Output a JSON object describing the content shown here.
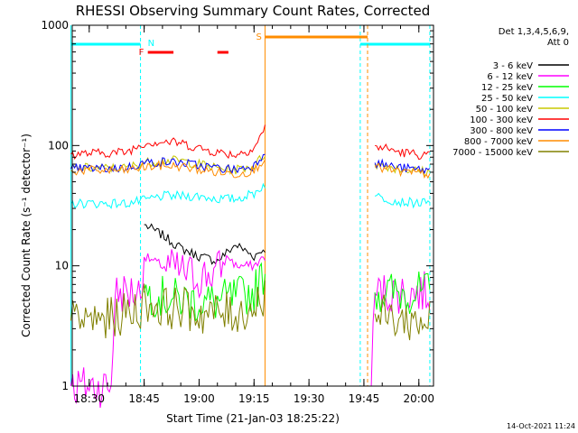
{
  "chart_data": {
    "type": "line",
    "title": "RHESSI Observing Summary Count Rates, Corrected",
    "xlabel": "Start Time (21-Jan-03 18:25:22)",
    "ylabel": "Corrected Count Rate (s⁻¹ detector⁻¹)",
    "y_scale": "log",
    "ylim": [
      1,
      1000
    ],
    "xlim": [
      "18:25:22",
      "20:04:00"
    ],
    "y_ticks": [
      {
        "value": 1,
        "label": "1"
      },
      {
        "value": 10,
        "label": "10"
      },
      {
        "value": 100,
        "label": "100"
      },
      {
        "value": 1000,
        "label": "1000"
      }
    ],
    "x_ticks": [
      "18:30",
      "18:45",
      "19:00",
      "19:15",
      "19:30",
      "19:45",
      "20:00"
    ],
    "legend_header": [
      "Det 1,3,4,5,6,9,",
      "Att 0"
    ],
    "legend_position": "right",
    "series": [
      {
        "name": "3 - 6 keV",
        "color": "#000000",
        "points": [
          [
            "18:45",
            22
          ],
          [
            "18:50",
            18
          ],
          [
            "18:55",
            14
          ],
          [
            "19:00",
            12
          ],
          [
            "19:05",
            11
          ],
          [
            "19:10",
            15
          ],
          [
            "19:15",
            12
          ],
          [
            "19:18",
            14
          ]
        ]
      },
      {
        "name": "6 - 12 keV",
        "color": "#ff00ff",
        "points": [
          [
            "18:25",
            1
          ],
          [
            "18:36",
            1
          ],
          [
            "18:37",
            6
          ],
          [
            "18:44",
            6
          ],
          [
            "18:45",
            12
          ],
          [
            "18:50",
            10
          ],
          [
            "18:55",
            9
          ],
          [
            "19:00",
            8
          ],
          [
            "19:05",
            9
          ],
          [
            "19:08",
            12
          ],
          [
            "19:10",
            10
          ],
          [
            "19:15",
            10
          ],
          [
            "19:18",
            12
          ],
          [
            "19:47",
            1
          ],
          [
            "19:48",
            6
          ],
          [
            "20:03",
            6
          ]
        ]
      },
      {
        "name": "12 - 25 keV",
        "color": "#00ff00",
        "points": [
          [
            "18:25",
            6
          ],
          [
            "18:45",
            6
          ],
          [
            "18:50",
            5.5
          ],
          [
            "19:00",
            5
          ],
          [
            "19:05",
            5
          ],
          [
            "19:10",
            5.5
          ],
          [
            "19:15",
            6
          ],
          [
            "19:18",
            9
          ],
          [
            "19:48",
            6
          ],
          [
            "20:03",
            6
          ]
        ]
      },
      {
        "name": "25 - 50 keV",
        "color": "#00ffff",
        "points": [
          [
            "18:25",
            33
          ],
          [
            "18:40",
            33
          ],
          [
            "18:45",
            35
          ],
          [
            "18:50",
            38
          ],
          [
            "18:55",
            38
          ],
          [
            "19:00",
            38
          ],
          [
            "19:05",
            36
          ],
          [
            "19:10",
            36
          ],
          [
            "19:15",
            40
          ],
          [
            "19:18",
            48
          ],
          [
            "19:48",
            38
          ],
          [
            "19:55",
            34
          ],
          [
            "20:03",
            33
          ]
        ]
      },
      {
        "name": "50 - 100 keV",
        "color": "#c8c800",
        "points": [
          [
            "18:25",
            65
          ],
          [
            "18:40",
            65
          ],
          [
            "18:45",
            72
          ],
          [
            "18:50",
            75
          ],
          [
            "18:55",
            75
          ],
          [
            "19:00",
            70
          ],
          [
            "19:05",
            65
          ],
          [
            "19:10",
            63
          ],
          [
            "19:15",
            68
          ],
          [
            "19:18",
            85
          ],
          [
            "19:48",
            70
          ],
          [
            "19:55",
            64
          ],
          [
            "20:03",
            60
          ]
        ]
      },
      {
        "name": "100 - 300 keV",
        "color": "#ff0000",
        "points": [
          [
            "18:25",
            85
          ],
          [
            "18:40",
            88
          ],
          [
            "18:45",
            105
          ],
          [
            "18:50",
            108
          ],
          [
            "18:55",
            105
          ],
          [
            "19:00",
            95
          ],
          [
            "19:05",
            88
          ],
          [
            "19:10",
            84
          ],
          [
            "19:15",
            95
          ],
          [
            "19:18",
            140
          ],
          [
            "19:48",
            100
          ],
          [
            "19:55",
            88
          ],
          [
            "20:03",
            82
          ]
        ]
      },
      {
        "name": "300 - 800 keV",
        "color": "#0000ff",
        "points": [
          [
            "18:25",
            64
          ],
          [
            "18:40",
            65
          ],
          [
            "18:45",
            72
          ],
          [
            "18:50",
            73
          ],
          [
            "18:55",
            72
          ],
          [
            "19:00",
            68
          ],
          [
            "19:05",
            65
          ],
          [
            "19:10",
            63
          ],
          [
            "19:15",
            68
          ],
          [
            "19:18",
            90
          ],
          [
            "19:48",
            72
          ],
          [
            "19:55",
            65
          ],
          [
            "20:03",
            62
          ]
        ]
      },
      {
        "name": "800 - 7000 keV",
        "color": "#ff8c00",
        "points": [
          [
            "18:25",
            62
          ],
          [
            "18:40",
            62
          ],
          [
            "18:45",
            66
          ],
          [
            "18:50",
            68
          ],
          [
            "18:55",
            67
          ],
          [
            "19:00",
            63
          ],
          [
            "19:05",
            60
          ],
          [
            "19:10",
            58
          ],
          [
            "19:15",
            62
          ],
          [
            "19:18",
            80
          ],
          [
            "19:48",
            66
          ],
          [
            "19:55",
            60
          ],
          [
            "20:03",
            58
          ]
        ]
      },
      {
        "name": "7000 - 15000 keV",
        "color": "#808000",
        "points": [
          [
            "18:25",
            3.5
          ],
          [
            "18:35",
            3.6
          ],
          [
            "18:40",
            4
          ],
          [
            "18:44",
            4.5
          ],
          [
            "18:45",
            5
          ],
          [
            "18:50",
            4.5
          ],
          [
            "18:55",
            4.5
          ],
          [
            "19:00",
            4
          ],
          [
            "19:05",
            4
          ],
          [
            "19:10",
            4
          ],
          [
            "19:15",
            4.5
          ],
          [
            "19:18",
            6
          ],
          [
            "19:48",
            4
          ],
          [
            "19:55",
            3.5
          ],
          [
            "20:03",
            3.5
          ]
        ]
      }
    ],
    "annotations": [
      {
        "label": "N",
        "color": "#00ffff"
      },
      {
        "label": "F",
        "color": "#ff0000"
      },
      {
        "label": "S",
        "color": "#ff8c00"
      }
    ],
    "flag_intervals": {
      "night": [
        [
          "18:25",
          "18:44"
        ],
        [
          "19:44",
          "20:03"
        ]
      ],
      "flare": [
        [
          "18:46",
          "18:53"
        ],
        [
          "19:05",
          "19:08"
        ]
      ],
      "saa": [
        [
          "19:18",
          "19:46"
        ]
      ]
    },
    "timestamp": "14-Oct-2021 11:24"
  }
}
